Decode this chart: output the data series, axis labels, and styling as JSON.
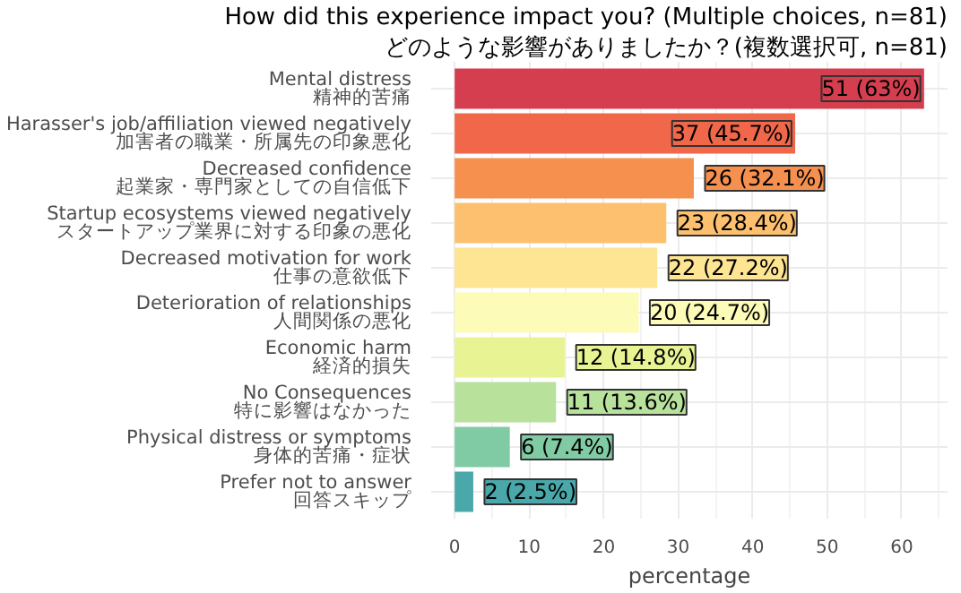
{
  "chart_data": {
    "type": "bar",
    "orientation": "horizontal",
    "title": "How did this experience impact you? (Multiple choices, n=81)",
    "subtitle": "どのような影響がありましたか？(複数選択可, n=81)",
    "xlabel": "percentage",
    "categories": [
      "Mental distress\n精神的苦痛",
      "Harasser's job/affiliation viewed negatively\n加害者の職業・所属先の印象悪化",
      "Decreased confidence\n起業家・専門家としての自信低下",
      "Startup ecosystems viewed negatively\nスタートアップ業界に対する印象の悪化",
      "Decreased motivation for work\n仕事の意欲低下",
      "Deterioration of relationships\n人間関係の悪化",
      "Economic harm\n経済的損失",
      "No Consequences\n特に影響はなかった",
      "Physical distress or symptoms\n身体的苦痛・症状",
      "Prefer not to answer\n回答スキップ"
    ],
    "values": [
      63,
      45.7,
      32.1,
      28.4,
      27.2,
      24.7,
      14.8,
      13.6,
      7.4,
      2.5
    ],
    "value_labels": [
      "51 (63%)",
      "37 (45.7%)",
      "26 (32.1%)",
      "23 (28.4%)",
      "22 (27.2%)",
      "20 (24.7%)",
      "12 (14.8%)",
      "11 (13.6%)",
      "6 (7.4%)",
      "2 (2.5%)"
    ],
    "colors": [
      "#d53e4f",
      "#f0674a",
      "#f6904f",
      "#fcc06f",
      "#fee593",
      "#fcfbb8",
      "#e8f494",
      "#b8e19c",
      "#80cba3",
      "#4aa8ab"
    ],
    "xlim": [
      -3.15,
      66.15
    ],
    "xticks": [
      0,
      10,
      20,
      30,
      40,
      50,
      60
    ],
    "grid": true
  }
}
